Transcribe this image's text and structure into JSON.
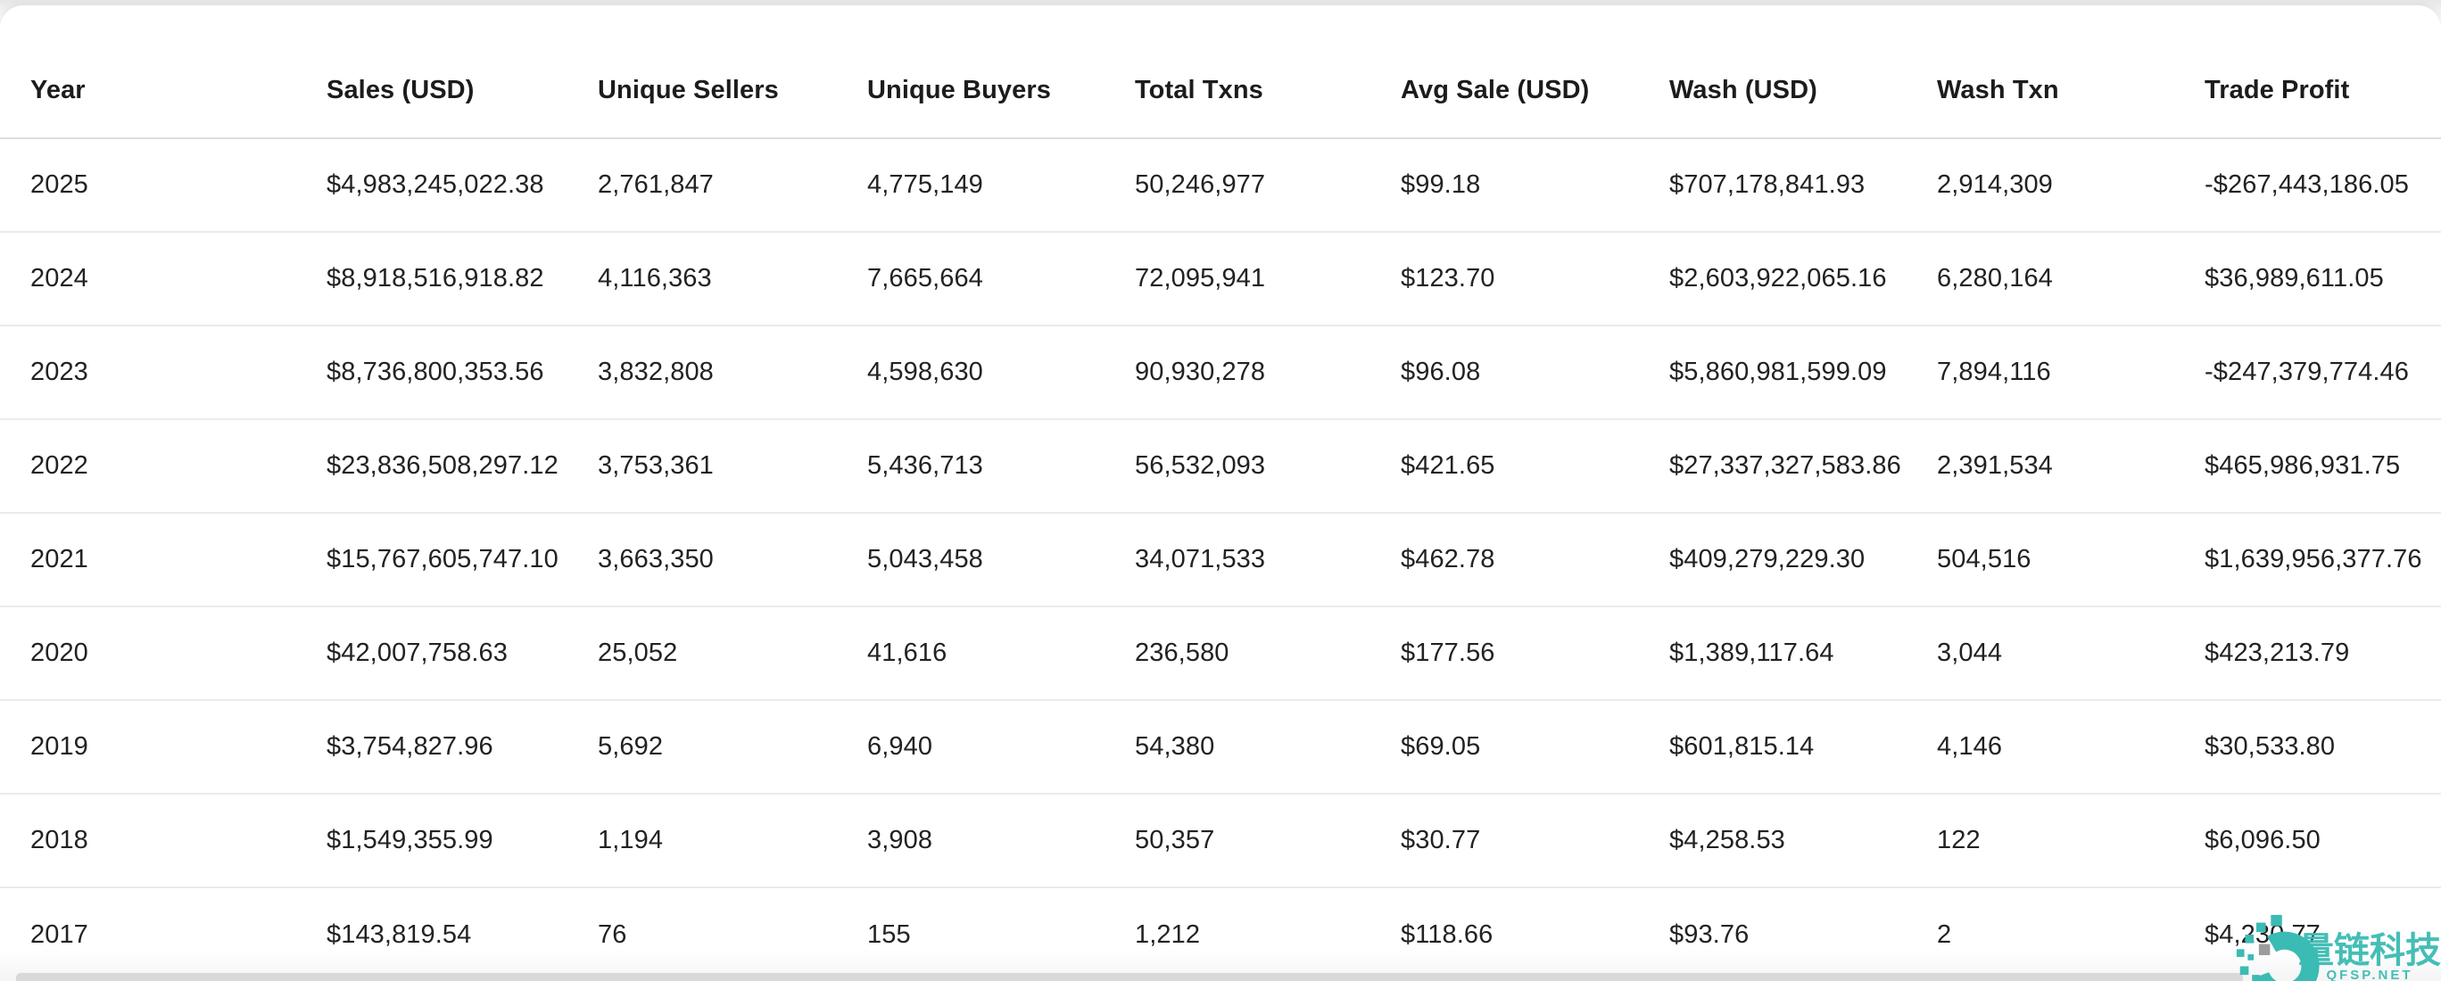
{
  "table": {
    "columns": [
      "Year",
      "Sales (USD)",
      "Unique Sellers",
      "Unique Buyers",
      "Total Txns",
      "Avg Sale (USD)",
      "Wash (USD)",
      "Wash Txn",
      "Trade Profit"
    ],
    "rows": [
      [
        "2025",
        "$4,983,245,022.38",
        "2,761,847",
        "4,775,149",
        "50,246,977",
        "$99.18",
        "$707,178,841.93",
        "2,914,309",
        "-$267,443,186.05"
      ],
      [
        "2024",
        "$8,918,516,918.82",
        "4,116,363",
        "7,665,664",
        "72,095,941",
        "$123.70",
        "$2,603,922,065.16",
        "6,280,164",
        "$36,989,611.05"
      ],
      [
        "2023",
        "$8,736,800,353.56",
        "3,832,808",
        "4,598,630",
        "90,930,278",
        "$96.08",
        "$5,860,981,599.09",
        "7,894,116",
        "-$247,379,774.46"
      ],
      [
        "2022",
        "$23,836,508,297.12",
        "3,753,361",
        "5,436,713",
        "56,532,093",
        "$421.65",
        "$27,337,327,583.86",
        "2,391,534",
        "$465,986,931.75"
      ],
      [
        "2021",
        "$15,767,605,747.10",
        "3,663,350",
        "5,043,458",
        "34,071,533",
        "$462.78",
        "$409,279,229.30",
        "504,516",
        "$1,639,956,377.76"
      ],
      [
        "2020",
        "$42,007,758.63",
        "25,052",
        "41,616",
        "236,580",
        "$177.56",
        "$1,389,117.64",
        "3,044",
        "$423,213.79"
      ],
      [
        "2019",
        "$3,754,827.96",
        "5,692",
        "6,940",
        "54,380",
        "$69.05",
        "$601,815.14",
        "4,146",
        "$30,533.80"
      ],
      [
        "2018",
        "$1,549,355.99",
        "1,194",
        "3,908",
        "50,357",
        "$30.77",
        "$4,258.53",
        "122",
        "$6,096.50"
      ],
      [
        "2017",
        "$143,819.54",
        "76",
        "155",
        "1,212",
        "$118.66",
        "$93.76",
        "2",
        "$4,230.77"
      ]
    ]
  },
  "watermark": {
    "brand": "量链科技",
    "domain": "QFSP.NET"
  },
  "colors": {
    "text": "#222222",
    "header_text": "#1c1c1c",
    "row_border": "#ebebeb",
    "header_border": "#dedede",
    "card_bg": "#ffffff",
    "scrollbar": "#d9d9d9",
    "watermark_teal": "#3abbb3",
    "watermark_gray": "#9c9c9c"
  }
}
